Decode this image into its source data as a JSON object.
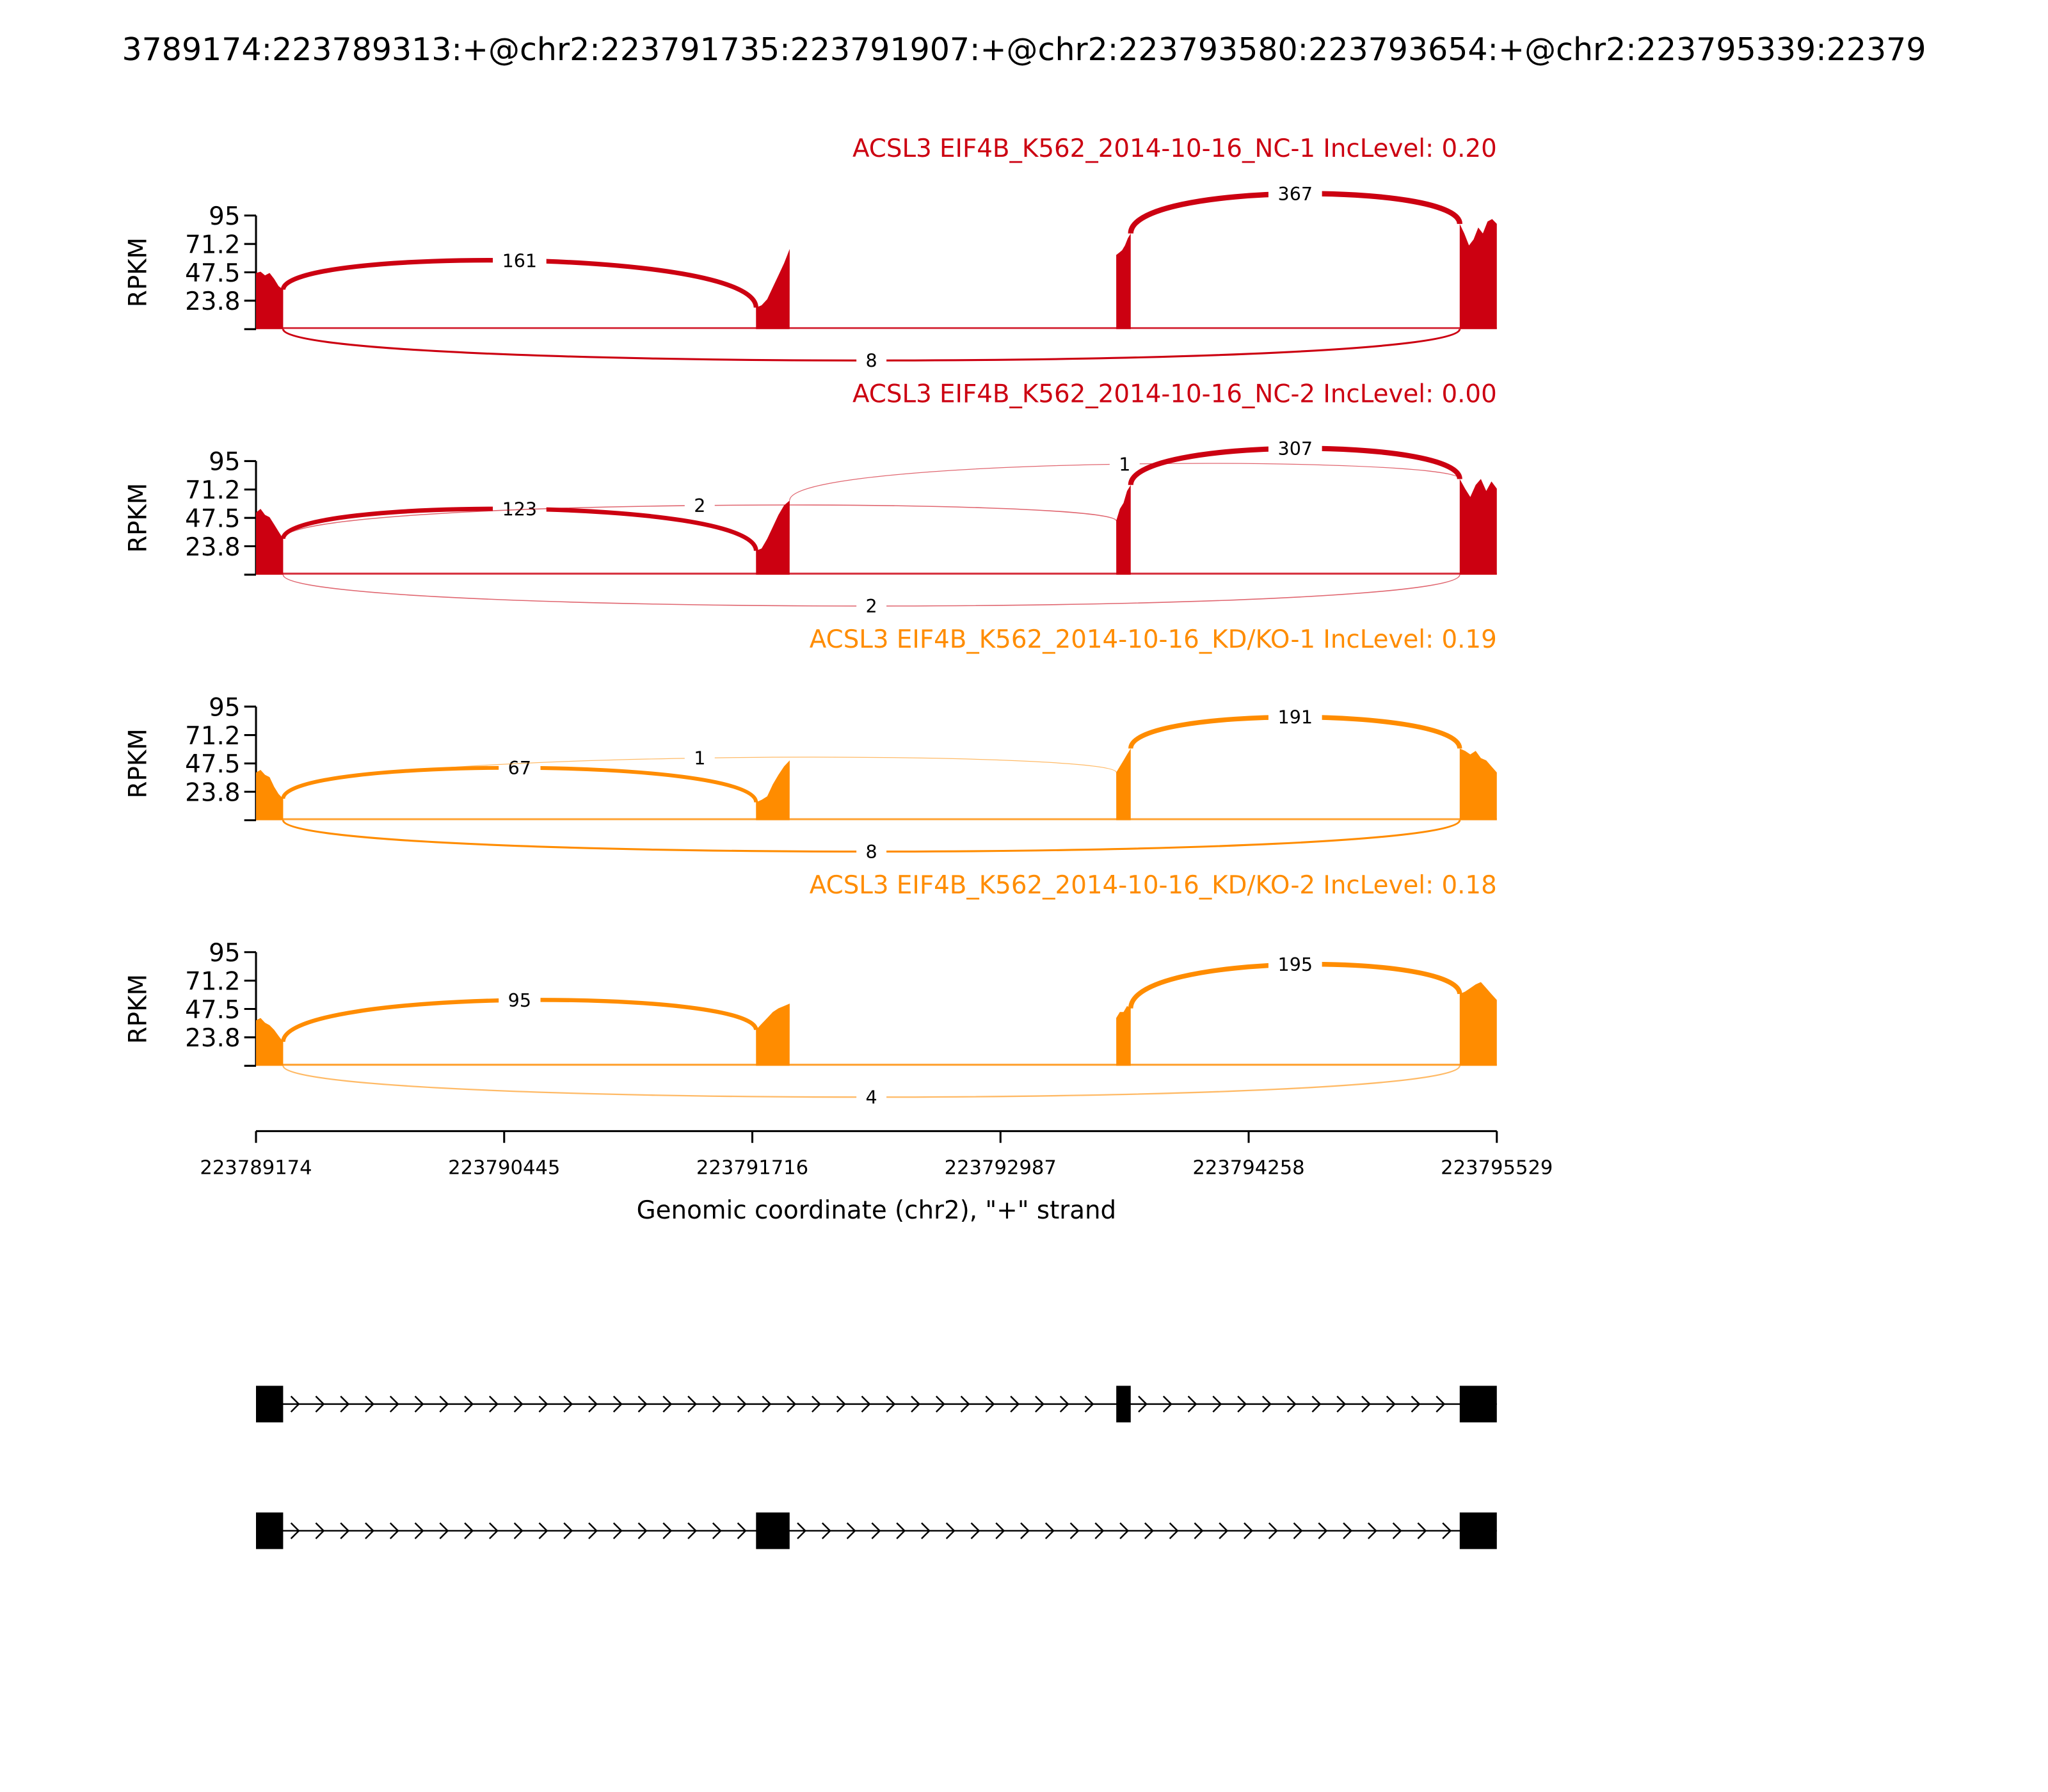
{
  "chart_data": {
    "type": "sashimi",
    "title": "3789174:223789313:+@chr2:223791735:223791907:+@chr2:223793580:223793654:+@chr2:223795339:22379",
    "xlabel": "Genomic coordinate (chr2), \"+\" strand",
    "xlim": [
      223789174,
      223795529
    ],
    "xticks": [
      "223789174",
      "223790445",
      "223791716",
      "223792987",
      "223794258",
      "223795529"
    ],
    "ylabel": "RPKM",
    "ylim": [
      0,
      95
    ],
    "yticks": [
      "95",
      "71.2",
      "47.5",
      "23.8"
    ],
    "exons": [
      [
        223789174,
        223789313
      ],
      [
        223791735,
        223791907
      ],
      [
        223793580,
        223793654
      ],
      [
        223795339,
        223795529
      ]
    ],
    "colors": {
      "NC": "#cc0011",
      "KD": "#ff8c00"
    },
    "panels": [
      {
        "title": "ACSL3 EIF4B_K562_2014-10-16_NC-1 IncLevel: 0.20",
        "group": "NC",
        "coverage": [
          [
            47,
            48,
            45,
            47,
            42,
            36,
            33
          ],
          [
            18,
            20,
            25,
            35,
            45,
            55,
            67
          ],
          [
            62,
            64,
            66,
            70,
            76,
            80
          ],
          [
            88,
            80,
            70,
            75,
            85,
            80,
            90,
            92,
            88
          ]
        ],
        "junctions": [
          {
            "from": 0,
            "to": 1,
            "count": "161",
            "side": "above"
          },
          {
            "from": 2,
            "to": 3,
            "count": "367",
            "side": "above"
          },
          {
            "from": 0,
            "to": 3,
            "count": "8",
            "side": "below"
          }
        ]
      },
      {
        "title": "ACSL3 EIF4B_K562_2014-10-16_NC-2 IncLevel: 0.00",
        "group": "NC",
        "coverage": [
          [
            52,
            55,
            50,
            48,
            42,
            36,
            30
          ],
          [
            20,
            22,
            30,
            40,
            50,
            58,
            62
          ],
          [
            45,
            55,
            60,
            70,
            75
          ],
          [
            80,
            72,
            65,
            75,
            80,
            70,
            78,
            72
          ]
        ],
        "junctions": [
          {
            "from": 0,
            "to": 1,
            "count": "123",
            "side": "above"
          },
          {
            "from": 0,
            "to": 2,
            "count": "2",
            "side": "above"
          },
          {
            "from": 1,
            "to": 3,
            "count": "1",
            "side": "above"
          },
          {
            "from": 2,
            "to": 3,
            "count": "307",
            "side": "above"
          },
          {
            "from": 0,
            "to": 3,
            "count": "2",
            "side": "below"
          }
        ]
      },
      {
        "title": "ACSL3 EIF4B_K562_2014-10-16_KD/KO-1 IncLevel: 0.19",
        "group": "KD",
        "coverage": [
          [
            40,
            42,
            38,
            36,
            28,
            22,
            18
          ],
          [
            15,
            17,
            20,
            30,
            38,
            45,
            50
          ],
          [
            40,
            45,
            50,
            55,
            60
          ],
          [
            60,
            58,
            55,
            58,
            52,
            50,
            45,
            40
          ]
        ],
        "junctions": [
          {
            "from": 0,
            "to": 1,
            "count": "67",
            "side": "above"
          },
          {
            "from": 0,
            "to": 2,
            "count": "1",
            "side": "above"
          },
          {
            "from": 2,
            "to": 3,
            "count": "191",
            "side": "above"
          },
          {
            "from": 0,
            "to": 3,
            "count": "8",
            "side": "below"
          }
        ]
      },
      {
        "title": "ACSL3 EIF4B_K562_2014-10-16_KD/KO-2 IncLevel: 0.18",
        "group": "KD",
        "coverage": [
          [
            38,
            40,
            36,
            34,
            30,
            25,
            20
          ],
          [
            30,
            35,
            40,
            45,
            48,
            50,
            52
          ],
          [
            40,
            45,
            45,
            50,
            48
          ],
          [
            60,
            62,
            65,
            68,
            70,
            65,
            60,
            55
          ]
        ],
        "junctions": [
          {
            "from": 0,
            "to": 1,
            "count": "95",
            "side": "above"
          },
          {
            "from": 2,
            "to": 3,
            "count": "195",
            "side": "above"
          },
          {
            "from": 0,
            "to": 3,
            "count": "4",
            "side": "below"
          }
        ]
      }
    ],
    "transcripts": [
      [
        0,
        2,
        3
      ],
      [
        0,
        1,
        3
      ]
    ]
  }
}
